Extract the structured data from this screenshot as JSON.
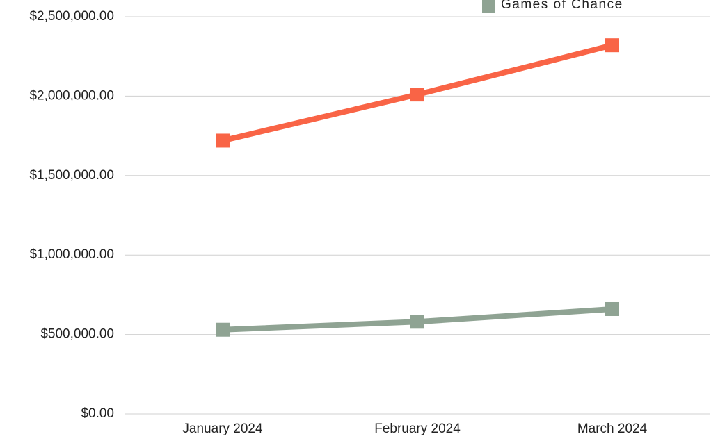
{
  "chart_data": {
    "type": "line",
    "categories": [
      "January 2024",
      "February 2024",
      "March 2024"
    ],
    "series": [
      {
        "color": "#f96446",
        "values": [
          1720000,
          2010000,
          2320000
        ]
      },
      {
        "name": "Games of Chance",
        "color": "#8fa393",
        "values": [
          530000,
          580000,
          660000
        ]
      }
    ],
    "ylim": [
      0,
      2500000
    ],
    "yticks": [
      {
        "value": 0,
        "label": "$0.00"
      },
      {
        "value": 500000,
        "label": "$500,000.00"
      },
      {
        "value": 1000000,
        "label": "$1,000,000.00"
      },
      {
        "value": 1500000,
        "label": "$1,500,000.00"
      },
      {
        "value": 2000000,
        "label": "$2,000,000.00"
      },
      {
        "value": 2500000,
        "label": "$2,500,000.00"
      }
    ],
    "grid": true
  }
}
